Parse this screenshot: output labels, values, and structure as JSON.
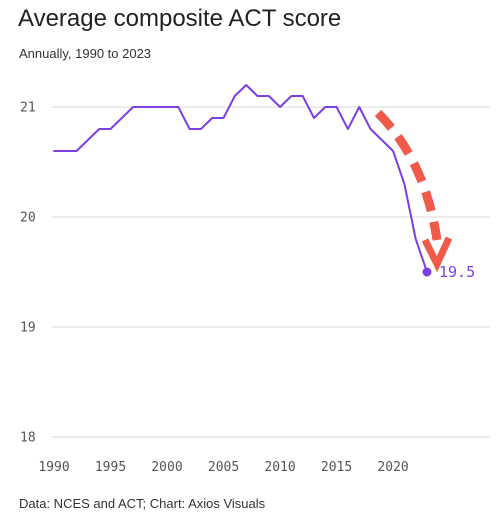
{
  "chart_data": {
    "type": "line",
    "title": "Average composite ACT score",
    "subtitle": "Annually, 1990 to 2023",
    "source": "Data: NCES and ACT; Chart: Axios Visuals",
    "xlabel": "",
    "ylabel": "",
    "xlim": [
      1990,
      2023
    ],
    "ylim": [
      18,
      21.2
    ],
    "x_ticks": [
      1990,
      1995,
      2000,
      2005,
      2010,
      2015,
      2020
    ],
    "y_ticks": [
      18,
      19,
      20,
      21
    ],
    "grid": "horizontal",
    "line_color": "#7b3fe4",
    "arrow_color": "#f05a4a",
    "end_label": "19.5",
    "series": [
      {
        "x": [
          1990,
          1991,
          1992,
          1993,
          1994,
          1995,
          1996,
          1997,
          1998,
          1999,
          2000,
          2001,
          2002,
          2003,
          2004,
          2005,
          2006,
          2007,
          2008,
          2009,
          2010,
          2011,
          2012,
          2013,
          2014,
          2015,
          2016,
          2017,
          2018,
          2019,
          2020,
          2021,
          2022,
          2023
        ],
        "values": [
          20.6,
          20.6,
          20.6,
          20.7,
          20.8,
          20.8,
          20.9,
          21.0,
          21.0,
          21.0,
          21.0,
          21.0,
          20.8,
          20.8,
          20.9,
          20.9,
          21.1,
          21.2,
          21.1,
          21.1,
          21.0,
          21.1,
          21.1,
          20.9,
          21.0,
          21.0,
          20.8,
          21.0,
          20.8,
          20.7,
          20.6,
          20.3,
          19.8,
          19.5
        ]
      }
    ]
  }
}
